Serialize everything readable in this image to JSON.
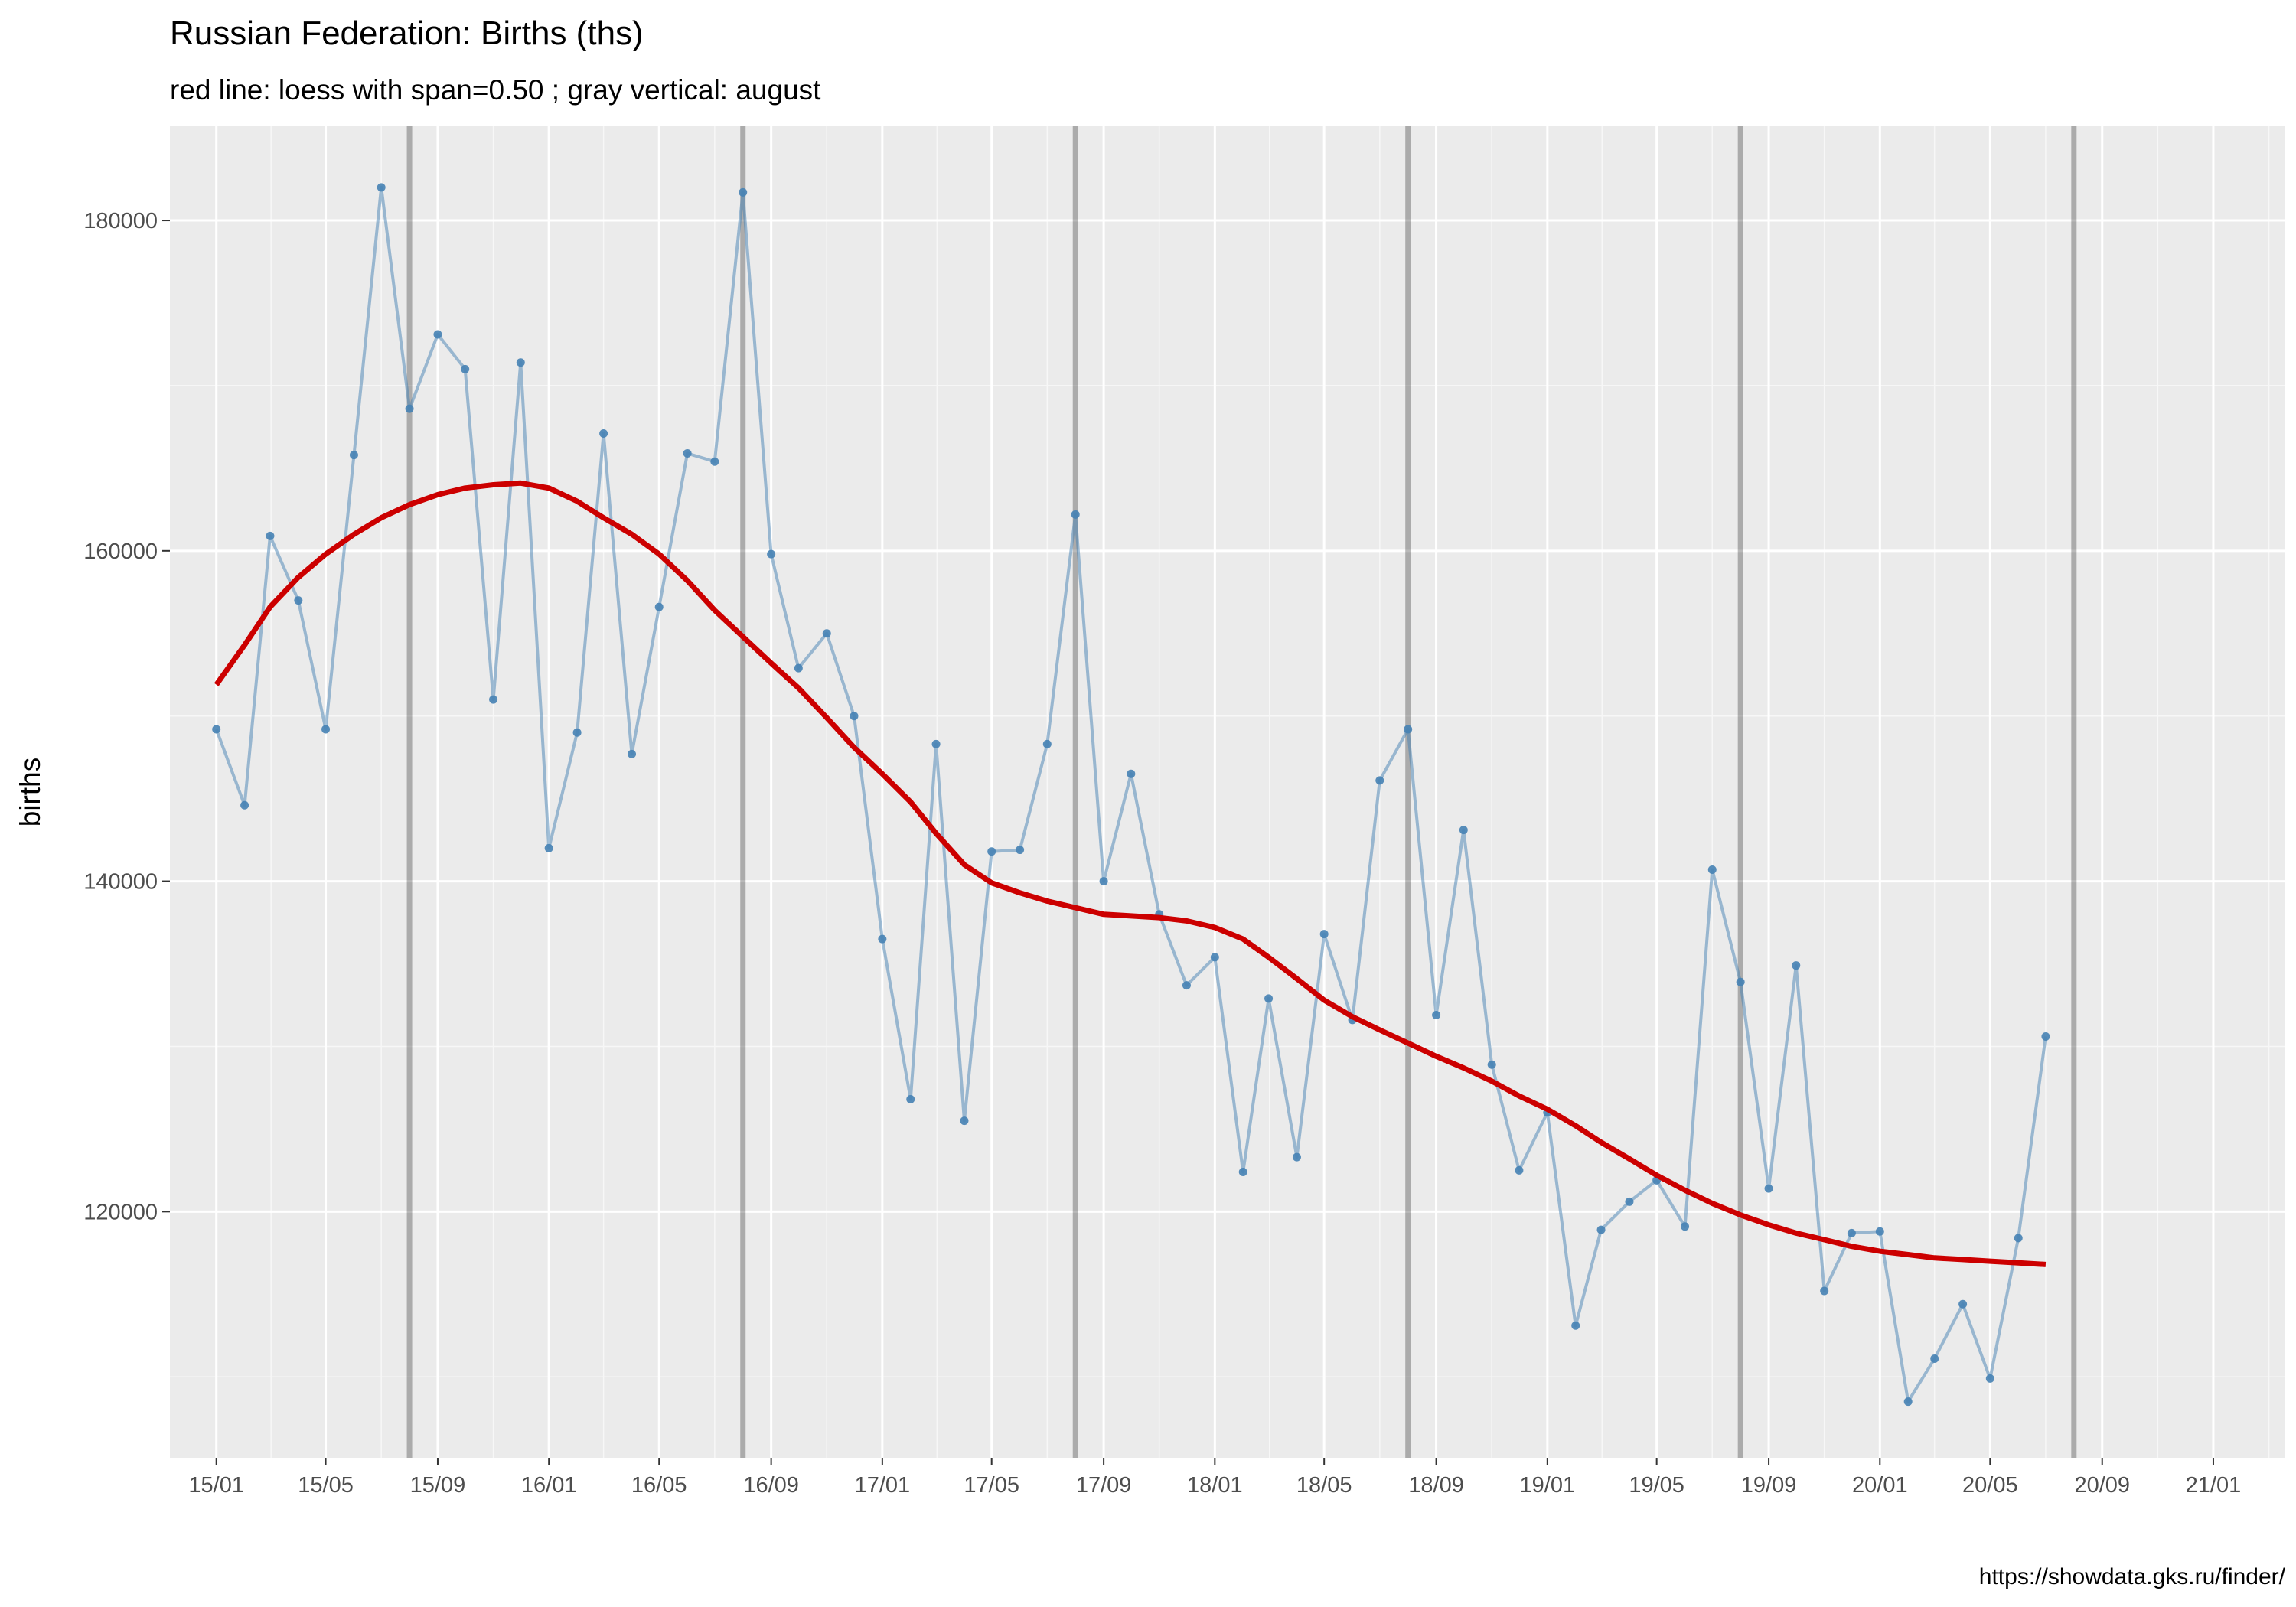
{
  "chart_data": {
    "type": "line",
    "title": "Russian Federation: Births (ths)",
    "subtitle": "red line: loess with span=0.50 ; gray vertical: august",
    "caption": "https://showdata.gks.ru/finder/",
    "xlabel": "",
    "ylabel": "births",
    "x_tick_labels": [
      "15/01",
      "15/05",
      "15/09",
      "16/01",
      "16/05",
      "16/09",
      "17/01",
      "17/05",
      "17/09",
      "18/01",
      "18/05",
      "18/09",
      "19/01",
      "19/05",
      "19/09",
      "20/01",
      "20/05",
      "20/09",
      "21/01"
    ],
    "x_ticks": [
      "2015-01",
      "2015-05",
      "2015-09",
      "2016-01",
      "2016-05",
      "2016-09",
      "2017-01",
      "2017-05",
      "2017-09",
      "2018-01",
      "2018-05",
      "2018-09",
      "2019-01",
      "2019-05",
      "2019-09",
      "2020-01",
      "2020-05",
      "2020-09",
      "2021-01"
    ],
    "xlim": [
      "2014-11-11",
      "2021-03-21"
    ],
    "y_ticks": [
      120000,
      140000,
      160000,
      180000
    ],
    "y_tick_labels": [
      "120000",
      "140000",
      "160000",
      "180000"
    ],
    "ylim": [
      105100,
      185700
    ],
    "grid": true,
    "legend": "none",
    "august_markers": [
      "2015-08",
      "2016-08",
      "2017-08",
      "2018-08",
      "2019-08",
      "2020-08"
    ],
    "series": [
      {
        "type": "line+points",
        "color": "#4682b4",
        "x": [
          "2015-01",
          "2015-02",
          "2015-03",
          "2015-04",
          "2015-05",
          "2015-06",
          "2015-07",
          "2015-08",
          "2015-09",
          "2015-10",
          "2015-11",
          "2015-12",
          "2016-01",
          "2016-02",
          "2016-03",
          "2016-04",
          "2016-05",
          "2016-06",
          "2016-07",
          "2016-08",
          "2016-09",
          "2016-10",
          "2016-11",
          "2016-12",
          "2017-01",
          "2017-02",
          "2017-03",
          "2017-04",
          "2017-05",
          "2017-06",
          "2017-07",
          "2017-08",
          "2017-09",
          "2017-10",
          "2017-11",
          "2017-12",
          "2018-01",
          "2018-02",
          "2018-03",
          "2018-04",
          "2018-05",
          "2018-06",
          "2018-07",
          "2018-08",
          "2018-09",
          "2018-10",
          "2018-11",
          "2018-12",
          "2019-01",
          "2019-02",
          "2019-03",
          "2019-04",
          "2019-05",
          "2019-06",
          "2019-07",
          "2019-08",
          "2019-09",
          "2019-10",
          "2019-11",
          "2019-12",
          "2020-01",
          "2020-02",
          "2020-03",
          "2020-04",
          "2020-05",
          "2020-06",
          "2020-07"
        ],
        "values": [
          149200,
          144600,
          160900,
          157000,
          149200,
          165800,
          182000,
          168600,
          173100,
          171000,
          151000,
          171400,
          142000,
          149000,
          167100,
          147700,
          156600,
          165900,
          165400,
          181700,
          159800,
          152900,
          155000,
          150000,
          136500,
          126800,
          148300,
          125500,
          141800,
          141900,
          148300,
          162200,
          140000,
          146500,
          138000,
          133700,
          135400,
          122400,
          132900,
          123300,
          136800,
          131600,
          146100,
          149200,
          131900,
          143100,
          128900,
          122500,
          126000,
          113100,
          118900,
          120600,
          121900,
          119100,
          140700,
          133900,
          121400,
          134900,
          115200,
          118700,
          118800,
          108500,
          111100,
          114400,
          109900,
          118400,
          130600
        ]
      },
      {
        "type": "loess",
        "color": "#cc0000",
        "x": [
          "2015-01",
          "2015-02",
          "2015-03",
          "2015-04",
          "2015-05",
          "2015-06",
          "2015-07",
          "2015-08",
          "2015-09",
          "2015-10",
          "2015-11",
          "2015-12",
          "2016-01",
          "2016-02",
          "2016-03",
          "2016-04",
          "2016-05",
          "2016-06",
          "2016-07",
          "2016-08",
          "2016-09",
          "2016-10",
          "2016-11",
          "2016-12",
          "2017-01",
          "2017-02",
          "2017-03",
          "2017-04",
          "2017-05",
          "2017-06",
          "2017-07",
          "2017-08",
          "2017-09",
          "2017-10",
          "2017-11",
          "2017-12",
          "2018-01",
          "2018-02",
          "2018-03",
          "2018-04",
          "2018-05",
          "2018-06",
          "2018-07",
          "2018-08",
          "2018-09",
          "2018-10",
          "2018-11",
          "2018-12",
          "2019-01",
          "2019-02",
          "2019-03",
          "2019-04",
          "2019-05",
          "2019-06",
          "2019-07",
          "2019-08",
          "2019-09",
          "2019-10",
          "2019-11",
          "2019-12",
          "2020-01",
          "2020-02",
          "2020-03",
          "2020-04",
          "2020-05",
          "2020-06",
          "2020-07"
        ],
        "values": [
          151900,
          154300,
          156600,
          158400,
          159800,
          161000,
          162000,
          162800,
          163400,
          163800,
          164000,
          164100,
          163800,
          163000,
          162000,
          161000,
          159800,
          158200,
          156400,
          154800,
          153200,
          151700,
          149900,
          148100,
          146500,
          144800,
          142900,
          141000,
          139900,
          139300,
          138800,
          138400,
          138000,
          137900,
          137800,
          137600,
          137200,
          136500,
          135400,
          134100,
          132800,
          131800,
          131000,
          130200,
          129400,
          128700,
          127900,
          127000,
          126200,
          125200,
          124200,
          123200,
          122200,
          121300,
          120500,
          119800,
          119200,
          118700,
          118300,
          117900,
          117600,
          117400,
          117200,
          117100,
          117000,
          116900,
          116800
        ]
      }
    ]
  }
}
